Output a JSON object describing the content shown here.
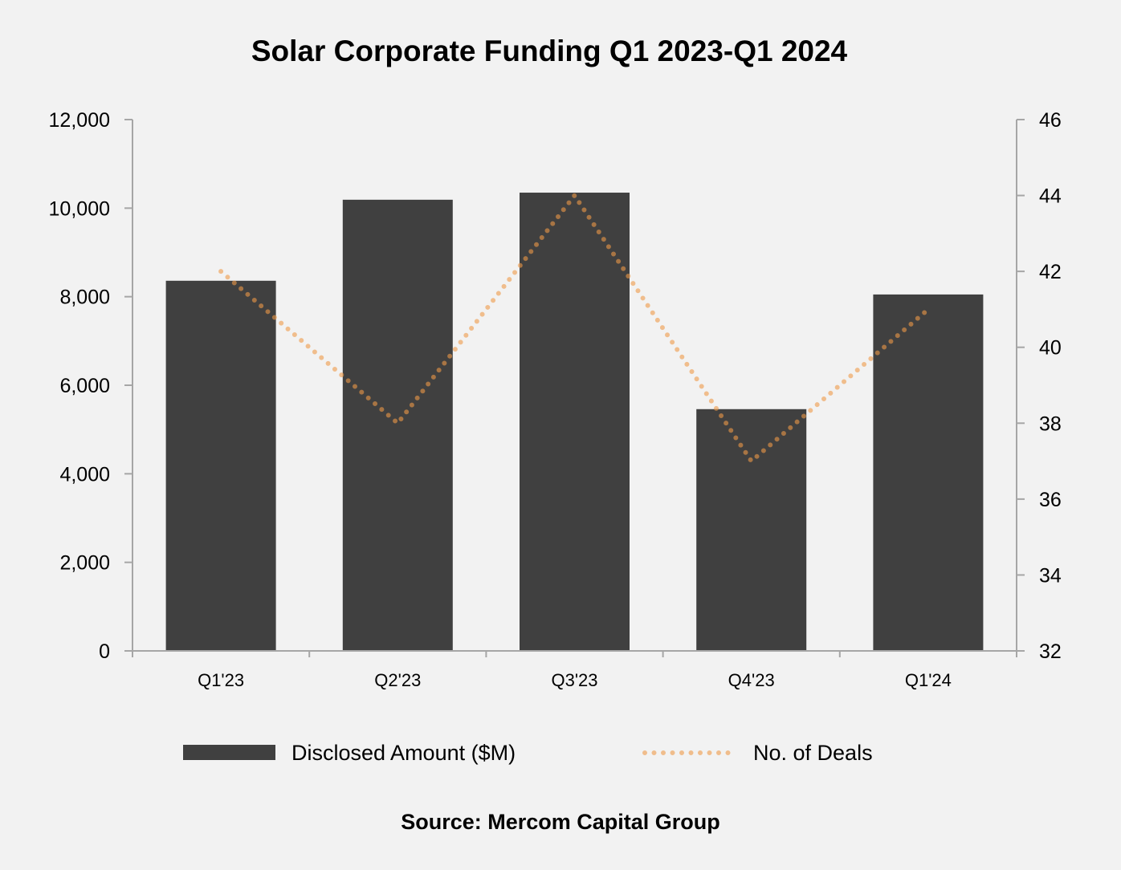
{
  "chart_data": {
    "type": "bar",
    "title": "Solar Corporate Funding Q1 2023-Q1 2024",
    "categories": [
      "Q1'23",
      "Q2'23",
      "Q3'23",
      "Q4'23",
      "Q1'24"
    ],
    "series": [
      {
        "name": "Disclosed Amount ($M)",
        "type": "bar",
        "axis": "left",
        "color": "#404040",
        "values": [
          8360,
          10190,
          10350,
          5460,
          8050
        ]
      },
      {
        "name": "No. of Deals",
        "type": "line",
        "style": "dotted",
        "axis": "right",
        "color": "#ee9a48",
        "values": [
          42,
          38,
          44,
          37,
          41
        ]
      }
    ],
    "y_left": {
      "range": [
        0,
        12000
      ],
      "ticks": [
        "0",
        "2,000",
        "4,000",
        "6,000",
        "8,000",
        "10,000",
        "12,000"
      ]
    },
    "y_right": {
      "range": [
        32,
        46
      ],
      "ticks": [
        "32",
        "34",
        "36",
        "38",
        "40",
        "42",
        "44",
        "46"
      ]
    },
    "grid": false,
    "legend": "bottom",
    "source": "Source: Mercom Capital Group"
  }
}
